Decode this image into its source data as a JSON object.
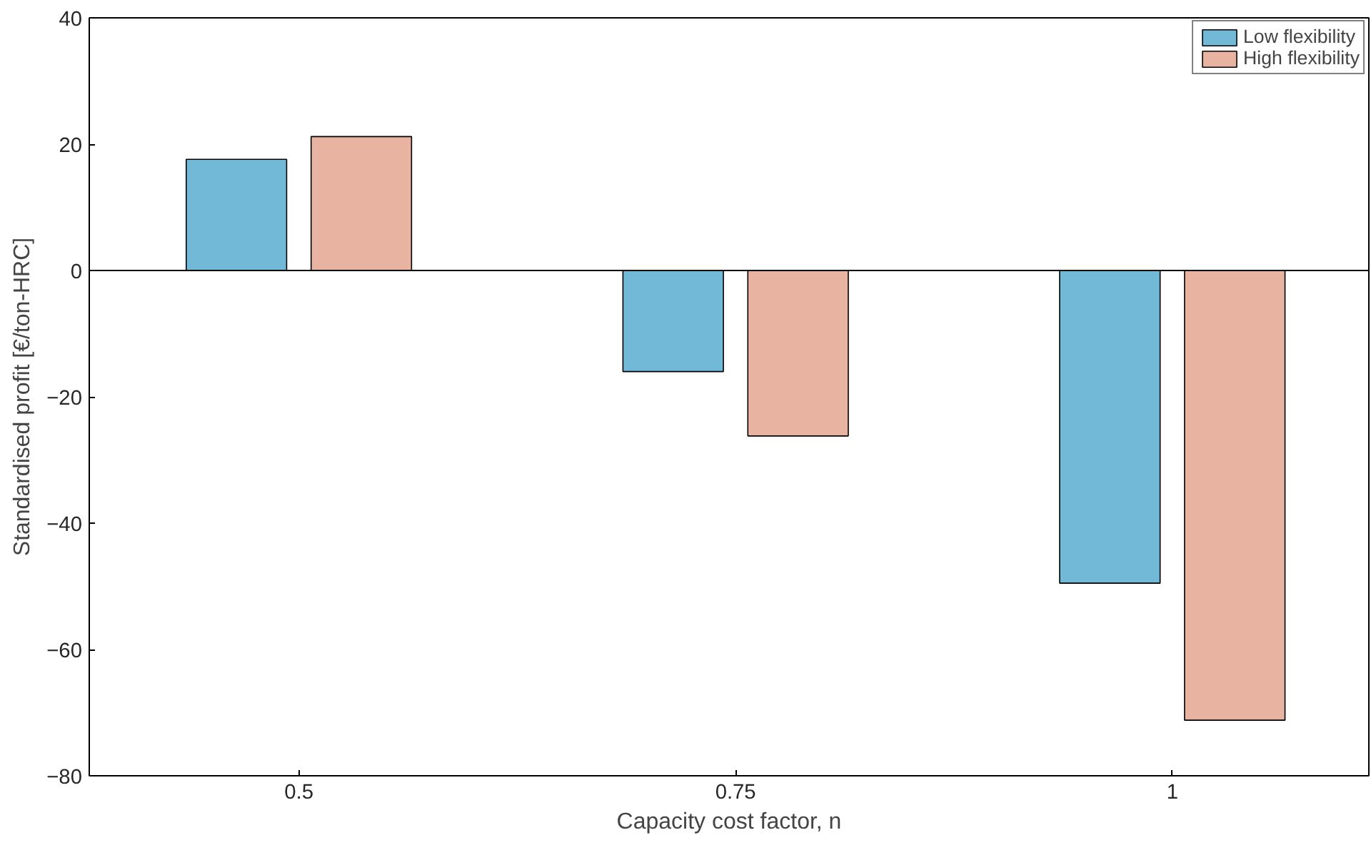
{
  "chart_data": {
    "type": "bar",
    "xlabel": "Capacity cost factor, n",
    "ylabel": "Standardised profit [€/ton-HRC]",
    "categories": [
      "0.5",
      "0.75",
      "1"
    ],
    "series": [
      {
        "name": "Low flexibility",
        "color": "#72b9d8",
        "values": [
          17.6,
          -16.0,
          -49.5
        ]
      },
      {
        "name": "High flexibility",
        "color": "#e9b3a2",
        "values": [
          21.2,
          -26.2,
          -71.2
        ]
      }
    ],
    "ylim": [
      -80,
      40
    ],
    "yticks": [
      -80,
      -60,
      -40,
      -20,
      0,
      20,
      40
    ],
    "ref_lines": [
      {
        "axis": "y",
        "value": 0,
        "color": "#000000"
      }
    ],
    "grid": false,
    "legend": "top right"
  }
}
